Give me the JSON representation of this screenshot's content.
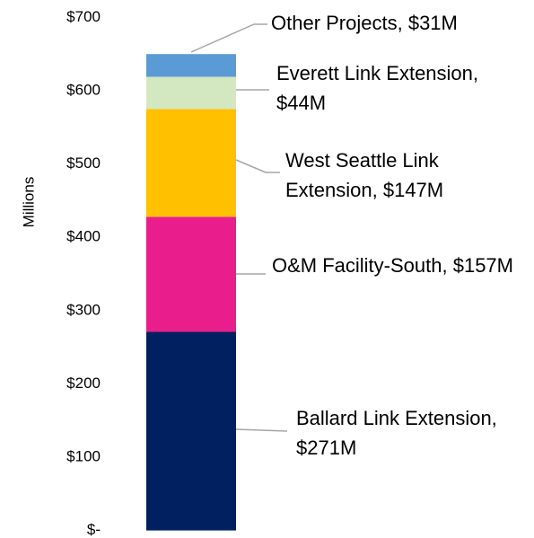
{
  "chart_data": {
    "type": "stacked_bar",
    "y_label": "Millions",
    "ylim": [
      0,
      700
    ],
    "yticks": [
      {
        "value": 0,
        "label": "$-"
      },
      {
        "value": 100,
        "label": "$100"
      },
      {
        "value": 200,
        "label": "$200"
      },
      {
        "value": 300,
        "label": "$300"
      },
      {
        "value": 400,
        "label": "$400"
      },
      {
        "value": 500,
        "label": "$500"
      },
      {
        "value": 600,
        "label": "$600"
      },
      {
        "value": 700,
        "label": "$700"
      }
    ],
    "series": [
      {
        "color": "#002060",
        "values": [
          271
        ],
        "value_labels": [
          "Ballard Link Extension, $271M"
        ]
      },
      {
        "color": "#e91e8c",
        "values": [
          157
        ],
        "value_labels": [
          "O&M Facility-South, $157M"
        ]
      },
      {
        "color": "#ffc000",
        "values": [
          147
        ],
        "value_labels": [
          "West Seattle Link Extension, $147M"
        ]
      },
      {
        "color": "#d3e8c0",
        "values": [
          44
        ],
        "value_labels": [
          "Everett Link Extension, $44M"
        ]
      },
      {
        "color": "#5b9bd5",
        "values": [
          31
        ],
        "value_labels": [
          "Other Projects, $31M"
        ]
      }
    ]
  }
}
